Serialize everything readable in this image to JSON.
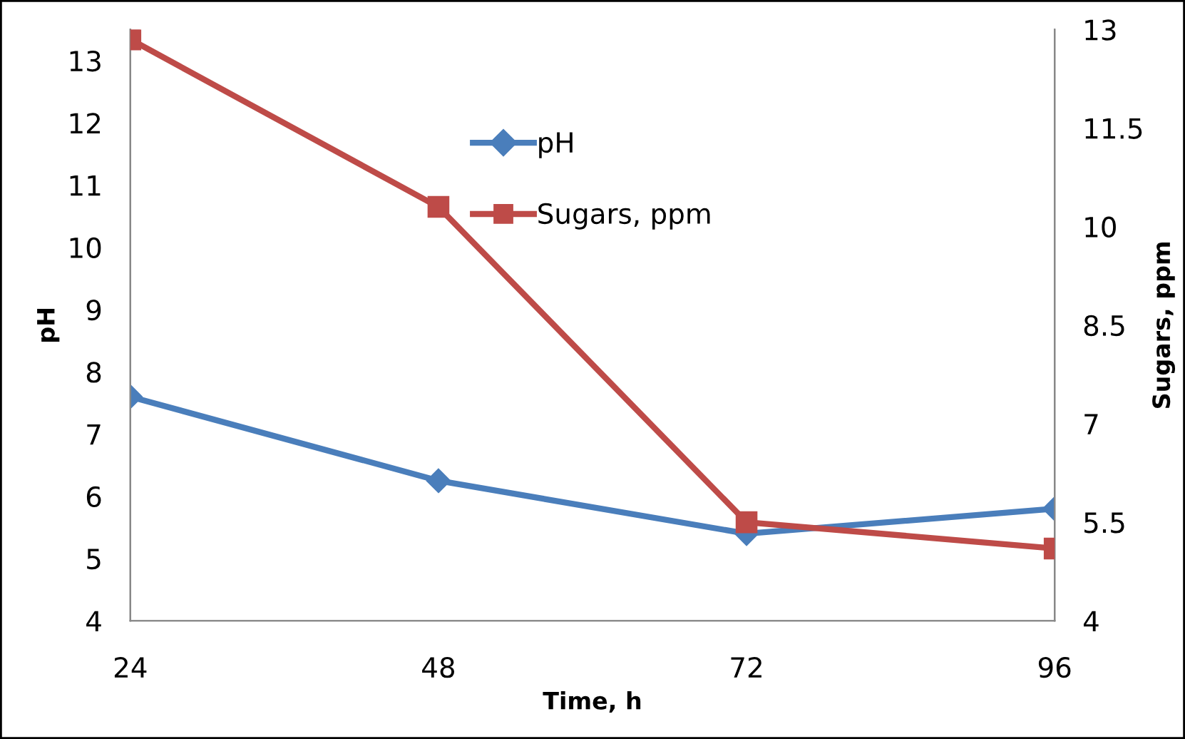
{
  "chart_data": {
    "type": "line",
    "xlabel": "Time, h",
    "ylabel": "pH",
    "y2label": "Sugars, ppm",
    "x": [
      24,
      48,
      72,
      96
    ],
    "xlim": [
      24,
      96
    ],
    "xticks": [
      24,
      48,
      72,
      96
    ],
    "ylim": [
      4,
      13.5
    ],
    "yticks": [
      4,
      5,
      6,
      7,
      8,
      9,
      10,
      11,
      12,
      13
    ],
    "y2lim": [
      4,
      13
    ],
    "y2ticks": [
      4,
      5.5,
      7,
      8.5,
      10,
      11.5,
      13
    ],
    "series": [
      {
        "name": "pH",
        "color": "#4a7ebb",
        "values": [
          7.6,
          6.25,
          5.4,
          5.8
        ],
        "marker": "diamond"
      },
      {
        "name": "Sugars, ppm",
        "color": "#be4b48",
        "values": [
          12.85,
          10.3,
          5.5,
          5.1
        ],
        "marker": "square",
        "axis": "y2"
      }
    ],
    "grid": false,
    "legend": "top",
    "line_style": "solid"
  }
}
